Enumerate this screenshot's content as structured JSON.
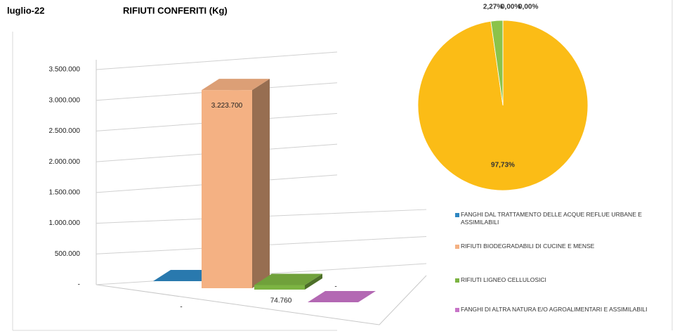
{
  "header": {
    "period": "luglio-22",
    "title": "RIFIUTI CONFERITI (Kg)"
  },
  "chart_data": [
    {
      "type": "bar3d",
      "categories": [
        "FANGHI DAL TRATTAMENTO DELLE ACQUE REFLUE URBANE E ASSIMILABILI",
        "RIFIUTI BIODEGRADABILI DI CUCINE E MENSE",
        "RIFIUTI LIGNEO CELLULOSICI",
        "FANGHI DI ALTRA NATURA E/O AGROALIMENTARI E ASSIMILABILI"
      ],
      "values": [
        0,
        3223700,
        74760,
        0
      ],
      "value_labels": [
        "-",
        "3.223.700",
        "74.760",
        "-"
      ],
      "colors": [
        "#2e86c1",
        "#f4b183",
        "#7cb342",
        "#c774c7"
      ],
      "ylim": [
        0,
        3500000
      ],
      "yticks": [
        {
          "value": 0,
          "label": "-"
        },
        {
          "value": 500000,
          "label": "500.000"
        },
        {
          "value": 1000000,
          "label": "1.000.000"
        },
        {
          "value": 1500000,
          "label": "1.500.000"
        },
        {
          "value": 2000000,
          "label": "2.000.000"
        },
        {
          "value": 2500000,
          "label": "2.500.000"
        },
        {
          "value": 3000000,
          "label": "3.000.000"
        },
        {
          "value": 3500000,
          "label": "3.500.000"
        }
      ],
      "grid": true,
      "legend": "right"
    },
    {
      "type": "pie",
      "values": [
        0,
        97.73,
        2.27,
        0
      ],
      "value_labels": [
        "0,00%",
        "97,73%",
        "2,27%",
        "0,00%"
      ],
      "colors": [
        "#2e86c1",
        "#fbbc16",
        "#8bc34a",
        "#d78ad7"
      ]
    }
  ]
}
